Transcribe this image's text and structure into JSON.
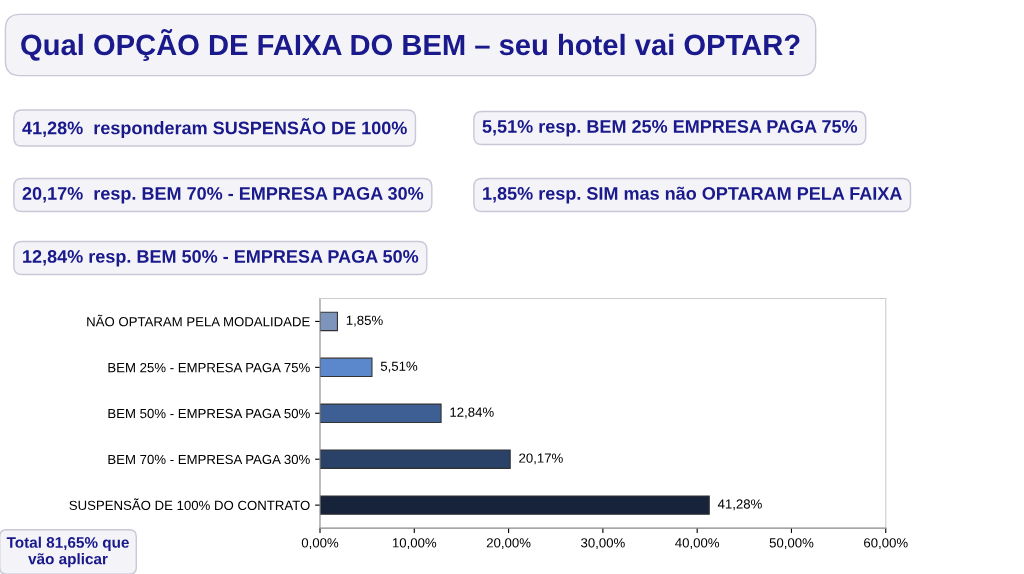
{
  "chart_data": {
    "type": "bar",
    "orientation": "horizontal",
    "title": "Qual OPÇÃO DE FAIXA DO BEM – seu hotel vai OPTAR?",
    "annotations": [
      "41,28%  responderam SUSPENSÃO DE 100%",
      "5,51% resp. BEM 25% EMPRESA PAGA 75%",
      "20,17%  resp. BEM 70% - EMPRESA PAGA 30%",
      "1,85% resp. SIM mas não OPTARAM PELA FAIXA",
      "12,84% resp. BEM 50% - EMPRESA PAGA 50%",
      "Total 81,65% que\nvão aplicar"
    ],
    "categories": [
      "NÃO OPTARAM PELA MODALIDADE",
      "BEM 25% - EMPRESA PAGA 75%",
      "BEM 50% - EMPRESA PAGA 50%",
      "BEM 70% - EMPRESA PAGA 30%",
      "SUSPENSÃO DE 100% DO CONTRATO"
    ],
    "values": [
      1.85,
      5.51,
      12.84,
      20.17,
      41.28
    ],
    "colors": [
      "#7d95bd",
      "#5b88cc",
      "#3e5f93",
      "#2a4168",
      "#17233b"
    ],
    "value_labels": [
      "1,85%",
      "5,51%",
      "12,84%",
      "20,17%",
      "41,28%"
    ],
    "xlim": [
      0,
      60
    ],
    "xticks": [
      {
        "value": 0,
        "label": "0,00%"
      },
      {
        "value": 10,
        "label": "10,00%"
      },
      {
        "value": 20,
        "label": "20,00%"
      },
      {
        "value": 30,
        "label": "30,00%"
      },
      {
        "value": 40,
        "label": "40,00%"
      },
      {
        "value": 50,
        "label": "50,00%"
      },
      {
        "value": 60,
        "label": "60,00%"
      }
    ],
    "grid": false,
    "legend": false
  }
}
